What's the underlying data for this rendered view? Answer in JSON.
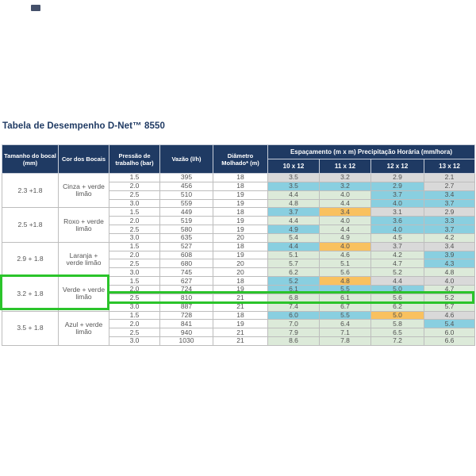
{
  "chart_data": {
    "type": "table",
    "title": "Tabela de Desempenho D-Net™ 8550",
    "headers": {
      "size": "Tamanho do bocal (mm)",
      "color": "Cor dos Bocais",
      "pressure": "Pressão de trabalho (bar)",
      "flow": "Vazão (l/h)",
      "diameter": "Diâmetro Molhado* (m)",
      "spacing": "Espaçamento  (m x m) Precipitação Horária (mm/hora)",
      "spacing_cols": [
        "10 x 12",
        "11 x 12",
        "12 x 12",
        "13 x 12"
      ]
    },
    "palette": {
      "gray": "#d9d9d9",
      "blue": "#89cfe0",
      "green": "#dcead9",
      "orange": "#f9c15f",
      "white": "#ffffff",
      "header_bg": "#1f3a63"
    },
    "groups": [
      {
        "size": "2.3 +1.8",
        "color": "Cinza + verde limão",
        "rows": [
          {
            "pressure": "1.5",
            "flow": "395",
            "diameter": "18",
            "rates": [
              {
                "v": "3.5",
                "c": "gray"
              },
              {
                "v": "3.2",
                "c": "gray"
              },
              {
                "v": "2.9",
                "c": "gray"
              },
              {
                "v": "2.1",
                "c": "gray"
              }
            ]
          },
          {
            "pressure": "2.0",
            "flow": "456",
            "diameter": "18",
            "rates": [
              {
                "v": "3.5",
                "c": "blue"
              },
              {
                "v": "3.2",
                "c": "blue"
              },
              {
                "v": "2.9",
                "c": "blue"
              },
              {
                "v": "2.7",
                "c": "gray"
              }
            ]
          },
          {
            "pressure": "2.5",
            "flow": "510",
            "diameter": "19",
            "rates": [
              {
                "v": "4.4",
                "c": "green"
              },
              {
                "v": "4.0",
                "c": "green"
              },
              {
                "v": "3.7",
                "c": "blue"
              },
              {
                "v": "3.4",
                "c": "blue"
              }
            ]
          },
          {
            "pressure": "3.0",
            "flow": "559",
            "diameter": "19",
            "rates": [
              {
                "v": "4.8",
                "c": "green"
              },
              {
                "v": "4.4",
                "c": "green"
              },
              {
                "v": "4.0",
                "c": "blue"
              },
              {
                "v": "3.7",
                "c": "blue"
              }
            ]
          }
        ]
      },
      {
        "size": "2.5 +1.8",
        "color": "Roxo + verde limão",
        "rows": [
          {
            "pressure": "1.5",
            "flow": "449",
            "diameter": "18",
            "rates": [
              {
                "v": "3.7",
                "c": "blue"
              },
              {
                "v": "3.4",
                "c": "orange"
              },
              {
                "v": "3.1",
                "c": "gray"
              },
              {
                "v": "2.9",
                "c": "gray"
              }
            ]
          },
          {
            "pressure": "2.0",
            "flow": "519",
            "diameter": "19",
            "rates": [
              {
                "v": "4.4",
                "c": "green"
              },
              {
                "v": "4.0",
                "c": "green"
              },
              {
                "v": "3.6",
                "c": "blue"
              },
              {
                "v": "3.3",
                "c": "blue"
              }
            ]
          },
          {
            "pressure": "2.5",
            "flow": "580",
            "diameter": "19",
            "rates": [
              {
                "v": "4.9",
                "c": "blue"
              },
              {
                "v": "4.4",
                "c": "green"
              },
              {
                "v": "4.0",
                "c": "blue"
              },
              {
                "v": "3.7",
                "c": "blue"
              }
            ]
          },
          {
            "pressure": "3.0",
            "flow": "635",
            "diameter": "20",
            "rates": [
              {
                "v": "5.4",
                "c": "green"
              },
              {
                "v": "4.9",
                "c": "green"
              },
              {
                "v": "4.5",
                "c": "green"
              },
              {
                "v": "4.2",
                "c": "green"
              }
            ]
          }
        ]
      },
      {
        "size": "2.9 + 1.8",
        "color": "Laranja + verde limão",
        "rows": [
          {
            "pressure": "1.5",
            "flow": "527",
            "diameter": "18",
            "rates": [
              {
                "v": "4.4",
                "c": "blue"
              },
              {
                "v": "4.0",
                "c": "orange"
              },
              {
                "v": "3.7",
                "c": "gray"
              },
              {
                "v": "3.4",
                "c": "gray"
              }
            ]
          },
          {
            "pressure": "2.0",
            "flow": "608",
            "diameter": "19",
            "rates": [
              {
                "v": "5.1",
                "c": "green"
              },
              {
                "v": "4.6",
                "c": "green"
              },
              {
                "v": "4.2",
                "c": "green"
              },
              {
                "v": "3.9",
                "c": "blue"
              }
            ]
          },
          {
            "pressure": "2.5",
            "flow": "680",
            "diameter": "20",
            "rates": [
              {
                "v": "5.7",
                "c": "green"
              },
              {
                "v": "5.1",
                "c": "green"
              },
              {
                "v": "4.7",
                "c": "green"
              },
              {
                "v": "4.3",
                "c": "blue"
              }
            ]
          },
          {
            "pressure": "3.0",
            "flow": "745",
            "diameter": "20",
            "rates": [
              {
                "v": "6.2",
                "c": "green"
              },
              {
                "v": "5.6",
                "c": "green"
              },
              {
                "v": "5.2",
                "c": "green"
              },
              {
                "v": "4.8",
                "c": "green"
              }
            ]
          }
        ]
      },
      {
        "size": "3.2 + 1.8",
        "color": "Verde + verde limão",
        "rows": [
          {
            "pressure": "1.5",
            "flow": "627",
            "diameter": "18",
            "rates": [
              {
                "v": "5.2",
                "c": "blue"
              },
              {
                "v": "4.8",
                "c": "orange"
              },
              {
                "v": "4.4",
                "c": "gray"
              },
              {
                "v": "4.0",
                "c": "gray"
              }
            ]
          },
          {
            "pressure": "2.0",
            "flow": "724",
            "diameter": "19",
            "rates": [
              {
                "v": "6.1",
                "c": "blue"
              },
              {
                "v": "5.5",
                "c": "blue"
              },
              {
                "v": "5.0",
                "c": "blue"
              },
              {
                "v": "4.7",
                "c": "green"
              }
            ]
          },
          {
            "pressure": "2.5",
            "flow": "810",
            "diameter": "21",
            "rates": [
              {
                "v": "6.8",
                "c": "green"
              },
              {
                "v": "6.1",
                "c": "green"
              },
              {
                "v": "5.6",
                "c": "green"
              },
              {
                "v": "5.2",
                "c": "green"
              }
            ]
          },
          {
            "pressure": "3.0",
            "flow": "887",
            "diameter": "21",
            "rates": [
              {
                "v": "7.4",
                "c": "green"
              },
              {
                "v": "6.7",
                "c": "green"
              },
              {
                "v": "6.2",
                "c": "green"
              },
              {
                "v": "5.7",
                "c": "green"
              }
            ]
          }
        ]
      },
      {
        "size": "3.5 + 1.8",
        "color": "Azul + verde limão",
        "rows": [
          {
            "pressure": "1.5",
            "flow": "728",
            "diameter": "18",
            "rates": [
              {
                "v": "6.0",
                "c": "blue"
              },
              {
                "v": "5.5",
                "c": "blue"
              },
              {
                "v": "5.0",
                "c": "orange"
              },
              {
                "v": "4.6",
                "c": "gray"
              }
            ]
          },
          {
            "pressure": "2.0",
            "flow": "841",
            "diameter": "19",
            "rates": [
              {
                "v": "7.0",
                "c": "green"
              },
              {
                "v": "6.4",
                "c": "green"
              },
              {
                "v": "5.8",
                "c": "green"
              },
              {
                "v": "5.4",
                "c": "blue"
              }
            ]
          },
          {
            "pressure": "2.5",
            "flow": "940",
            "diameter": "21",
            "rates": [
              {
                "v": "7.9",
                "c": "green"
              },
              {
                "v": "7.1",
                "c": "green"
              },
              {
                "v": "6.5",
                "c": "green"
              },
              {
                "v": "6.0",
                "c": "green"
              }
            ]
          },
          {
            "pressure": "3.0",
            "flow": "1030",
            "diameter": "21",
            "rates": [
              {
                "v": "8.6",
                "c": "green"
              },
              {
                "v": "7.8",
                "c": "green"
              },
              {
                "v": "7.2",
                "c": "green"
              },
              {
                "v": "6.6",
                "c": "green"
              }
            ]
          }
        ]
      }
    ],
    "highlight": {
      "color": "#2bc42b",
      "highlighted_nozzle": "3.2 + 1.8 Verde + verde limão",
      "highlighted_row": {
        "pressure": "2.5",
        "flow": "810",
        "diameter": "21",
        "rates": [
          "6.8",
          "6.1",
          "5.6",
          "5.2"
        ]
      }
    }
  }
}
